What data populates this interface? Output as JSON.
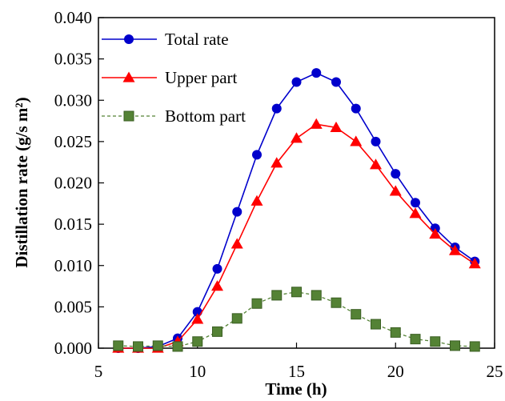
{
  "chart_data": {
    "type": "line",
    "xlabel": "Time (h)",
    "ylabel": "Distillation rate (g/s m²)",
    "xlim": [
      5,
      25
    ],
    "ylim": [
      0.0,
      0.04
    ],
    "xticks": [
      "5",
      "10",
      "15",
      "20",
      "25"
    ],
    "yticks": [
      "0.000",
      "0.005",
      "0.010",
      "0.015",
      "0.020",
      "0.025",
      "0.030",
      "0.035",
      "0.040"
    ],
    "grid": false,
    "legend_position": "top-left",
    "x": [
      6,
      7,
      8,
      9,
      10,
      11,
      12,
      13,
      14,
      15,
      16,
      17,
      18,
      19,
      20,
      21,
      22,
      23,
      24
    ],
    "series": [
      {
        "name": "Total rate",
        "color": "#0000cc",
        "marker": "circle",
        "line": "solid",
        "values": [
          0.0,
          0.0,
          0.0002,
          0.0012,
          0.0044,
          0.0096,
          0.0165,
          0.0234,
          0.029,
          0.0322,
          0.0333,
          0.0322,
          0.029,
          0.025,
          0.0211,
          0.0176,
          0.0145,
          0.0122,
          0.0105
        ]
      },
      {
        "name": "Upper part",
        "color": "#ff0000",
        "marker": "triangle",
        "line": "solid",
        "values": [
          0.0,
          0.0,
          0.0,
          0.0008,
          0.0035,
          0.0075,
          0.0126,
          0.0178,
          0.0224,
          0.0254,
          0.0271,
          0.0267,
          0.025,
          0.0222,
          0.019,
          0.0163,
          0.0138,
          0.0118,
          0.0102
        ]
      },
      {
        "name": "Bottom part",
        "color": "#548235",
        "marker": "square",
        "line": "dashed",
        "values": [
          0.0003,
          0.0002,
          0.0003,
          0.0002,
          0.0008,
          0.002,
          0.0036,
          0.0054,
          0.0064,
          0.0068,
          0.0064,
          0.0055,
          0.0041,
          0.0029,
          0.0019,
          0.0011,
          0.0008,
          0.0003,
          0.0002
        ]
      }
    ]
  }
}
